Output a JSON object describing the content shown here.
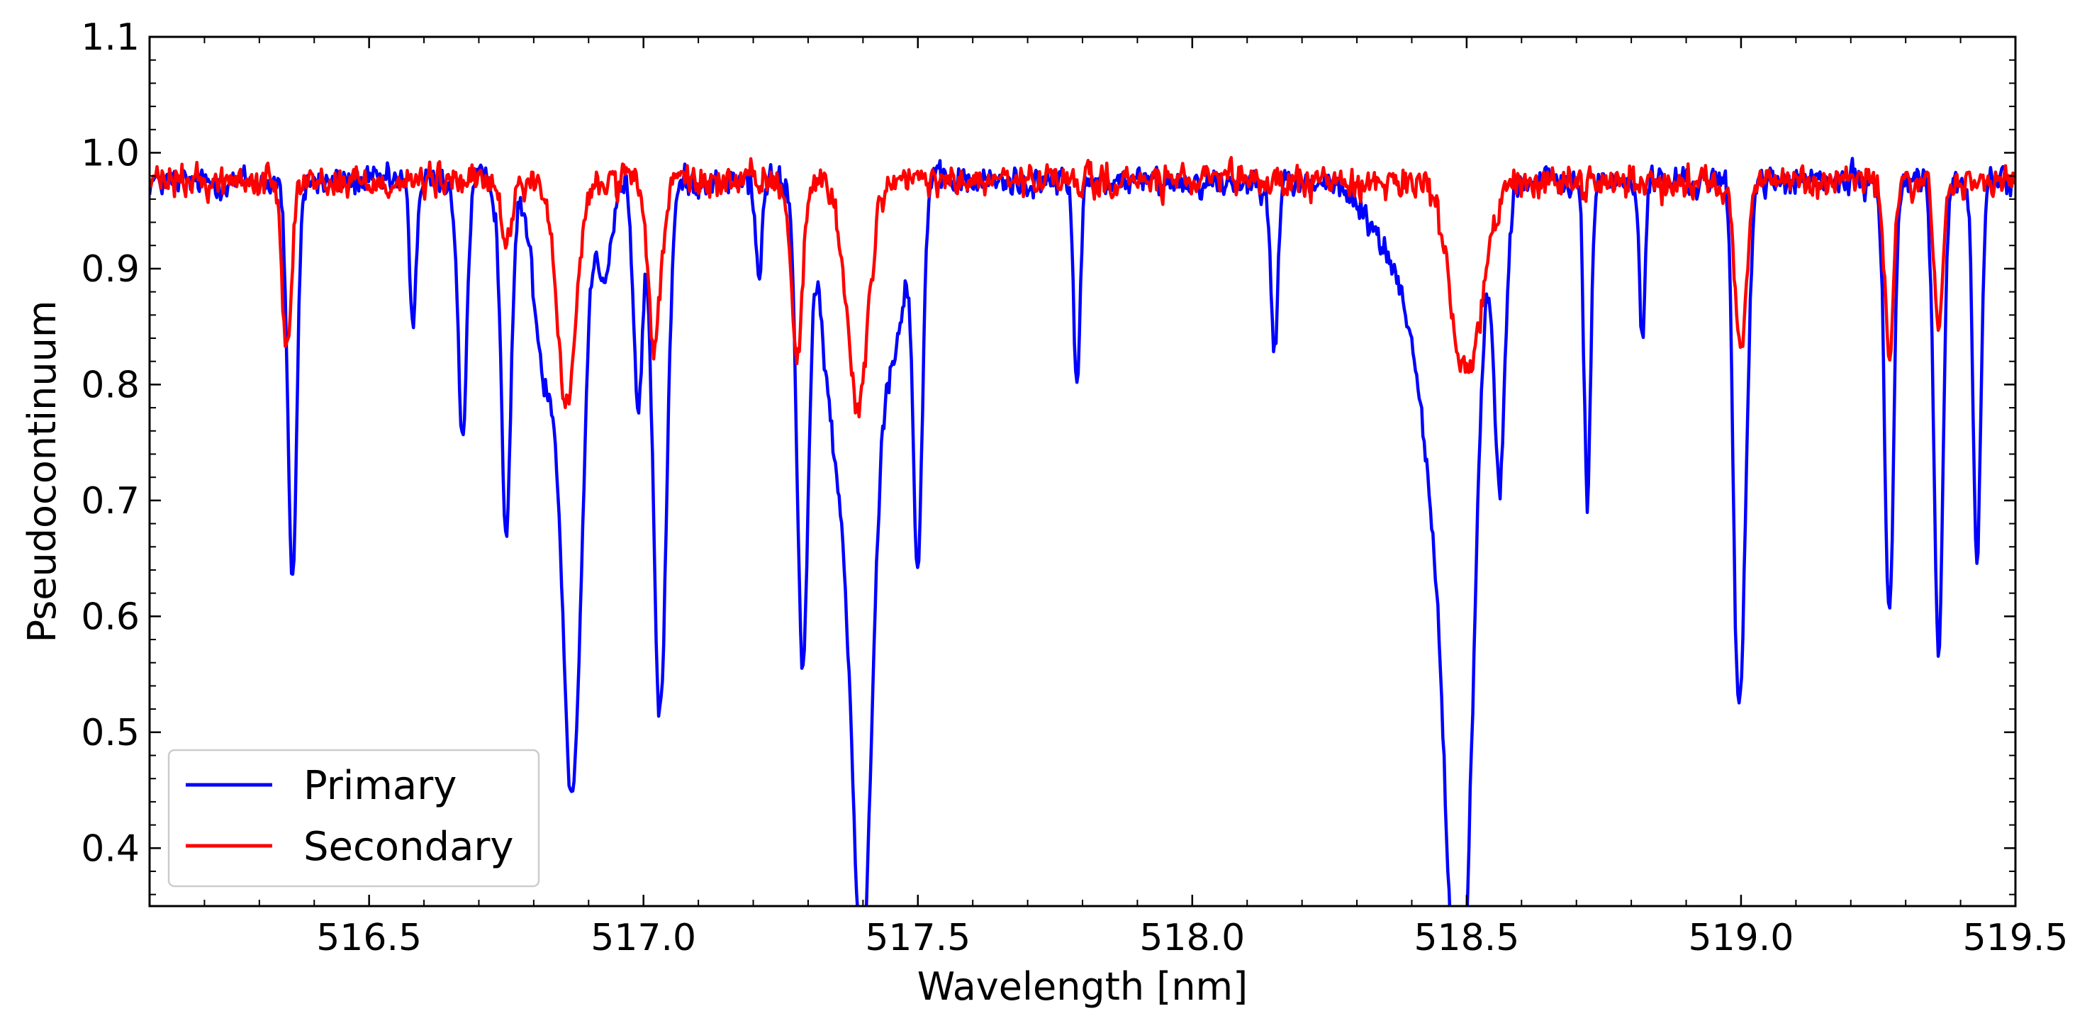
{
  "chart_data": {
    "type": "line",
    "title": "",
    "xlabel": "Wavelength [nm]",
    "ylabel": "Pseudocontinuum",
    "xlim": [
      516.1,
      519.5
    ],
    "ylim": [
      0.35,
      1.1
    ],
    "x_ticks": [
      "516.5",
      "517.0",
      "517.5",
      "518.0",
      "518.5",
      "519.0",
      "519.5"
    ],
    "y_ticks": [
      "0.4",
      "0.5",
      "0.6",
      "0.7",
      "0.8",
      "0.9",
      "1.0",
      "1.1"
    ],
    "grid": false,
    "legend_position": "lower-left",
    "series": [
      {
        "name": "Primary",
        "color": "#0000ff",
        "continuum": 0.975,
        "noise": 0.028,
        "absorption_lines": [
          {
            "center": 516.36,
            "depth": 0.35,
            "width": 0.008
          },
          {
            "center": 516.58,
            "depth": 0.12,
            "width": 0.006
          },
          {
            "center": 516.67,
            "depth": 0.22,
            "width": 0.008
          },
          {
            "center": 516.75,
            "depth": 0.3,
            "width": 0.009
          },
          {
            "center": 516.82,
            "depth": 0.16,
            "width": 0.02
          },
          {
            "center": 516.87,
            "depth": 0.52,
            "width": 0.018
          },
          {
            "center": 516.93,
            "depth": 0.08,
            "width": 0.012
          },
          {
            "center": 516.99,
            "depth": 0.2,
            "width": 0.008
          },
          {
            "center": 517.03,
            "depth": 0.46,
            "width": 0.012
          },
          {
            "center": 517.21,
            "depth": 0.08,
            "width": 0.006
          },
          {
            "center": 517.29,
            "depth": 0.4,
            "width": 0.01
          },
          {
            "center": 517.36,
            "depth": 0.25,
            "width": 0.03
          },
          {
            "center": 517.4,
            "depth": 0.54,
            "width": 0.018
          },
          {
            "center": 517.45,
            "depth": 0.15,
            "width": 0.025
          },
          {
            "center": 517.5,
            "depth": 0.32,
            "width": 0.008
          },
          {
            "center": 517.79,
            "depth": 0.17,
            "width": 0.006
          },
          {
            "center": 518.15,
            "depth": 0.15,
            "width": 0.006
          },
          {
            "center": 518.4,
            "depth": 0.08,
            "width": 0.06
          },
          {
            "center": 518.46,
            "depth": 0.25,
            "width": 0.035
          },
          {
            "center": 518.49,
            "depth": 0.55,
            "width": 0.022
          },
          {
            "center": 518.56,
            "depth": 0.25,
            "width": 0.01
          },
          {
            "center": 518.72,
            "depth": 0.28,
            "width": 0.006
          },
          {
            "center": 518.82,
            "depth": 0.14,
            "width": 0.005
          },
          {
            "center": 518.99,
            "depth": 0.14,
            "width": 0.006
          },
          {
            "center": 519.0,
            "depth": 0.4,
            "width": 0.01
          },
          {
            "center": 519.27,
            "depth": 0.37,
            "width": 0.008
          },
          {
            "center": 519.36,
            "depth": 0.41,
            "width": 0.008
          },
          {
            "center": 519.43,
            "depth": 0.33,
            "width": 0.007
          }
        ]
      },
      {
        "name": "Secondary",
        "color": "#ff0000",
        "continuum": 0.975,
        "noise": 0.03,
        "absorption_lines": [
          {
            "center": 516.35,
            "depth": 0.14,
            "width": 0.008
          },
          {
            "center": 516.75,
            "depth": 0.06,
            "width": 0.008
          },
          {
            "center": 516.86,
            "depth": 0.19,
            "width": 0.018
          },
          {
            "center": 517.02,
            "depth": 0.14,
            "width": 0.012
          },
          {
            "center": 517.28,
            "depth": 0.15,
            "width": 0.01
          },
          {
            "center": 517.39,
            "depth": 0.19,
            "width": 0.02
          },
          {
            "center": 518.5,
            "depth": 0.16,
            "width": 0.03
          },
          {
            "center": 519.0,
            "depth": 0.15,
            "width": 0.01
          },
          {
            "center": 519.27,
            "depth": 0.15,
            "width": 0.008
          },
          {
            "center": 519.36,
            "depth": 0.13,
            "width": 0.008
          }
        ]
      }
    ]
  }
}
